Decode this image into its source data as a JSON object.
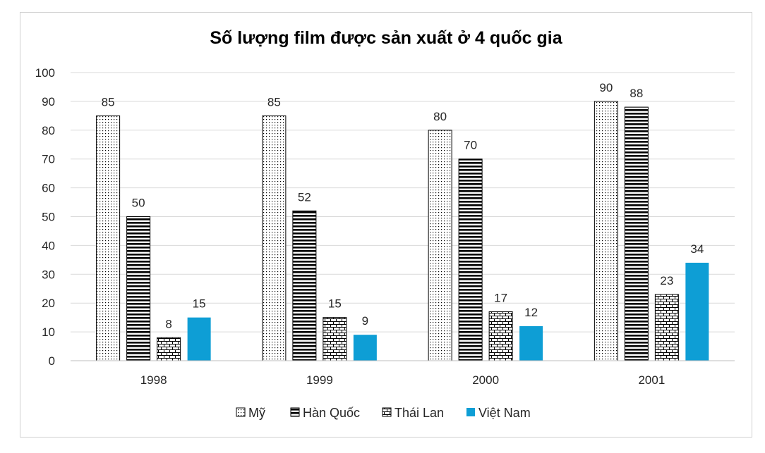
{
  "chart_data": {
    "type": "bar",
    "title": "Số lượng film được sản xuất ở 4 quốc gia",
    "categories": [
      "1998",
      "1999",
      "2000",
      "2001"
    ],
    "series": [
      {
        "name": "Mỹ",
        "values": [
          85,
          85,
          80,
          90
        ],
        "pattern": "dots",
        "color": "#000000"
      },
      {
        "name": "Hàn Quốc",
        "values": [
          50,
          52,
          70,
          88
        ],
        "pattern": "hstripes",
        "color": "#000000"
      },
      {
        "name": "Thái Lan",
        "values": [
          8,
          15,
          17,
          23
        ],
        "pattern": "bricks",
        "color": "#000000"
      },
      {
        "name": "Việt Nam",
        "values": [
          15,
          9,
          12,
          34
        ],
        "pattern": "solid",
        "color": "#0e9ed5"
      }
    ],
    "yticks": [
      "0",
      "10",
      "20",
      "30",
      "40",
      "50",
      "60",
      "70",
      "80",
      "90",
      "100"
    ],
    "ylim": [
      0,
      100
    ],
    "grid": true,
    "legend_position": "bottom"
  }
}
